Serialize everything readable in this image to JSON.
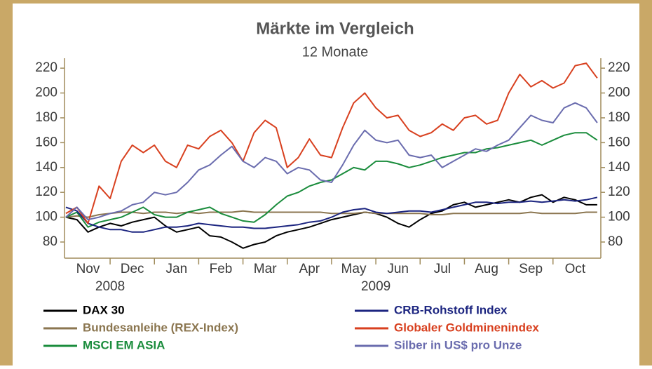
{
  "chart_data": {
    "type": "line",
    "title": "Märkte im Vergleich",
    "subtitle": "12 Monate",
    "x": [
      0,
      0.25,
      0.5,
      0.75,
      1,
      1.25,
      1.5,
      1.75,
      2,
      2.25,
      2.5,
      2.75,
      3,
      3.25,
      3.5,
      3.75,
      4,
      4.25,
      4.5,
      4.75,
      5,
      5.25,
      5.5,
      5.75,
      6,
      6.25,
      6.5,
      6.75,
      7,
      7.25,
      7.5,
      7.75,
      8,
      8.25,
      8.5,
      8.75,
      9,
      9.25,
      9.5,
      9.75,
      10,
      10.25,
      10.5,
      10.75,
      11,
      11.25,
      11.5,
      11.75,
      12
    ],
    "xlim": [
      -0.03,
      12.08
    ],
    "xticks": [
      {
        "value": 0.5,
        "label": "Nov"
      },
      {
        "value": 1.5,
        "label": "Dec"
      },
      {
        "value": 2.5,
        "label": "Jan"
      },
      {
        "value": 3.5,
        "label": "Feb"
      },
      {
        "value": 4.5,
        "label": "Mar"
      },
      {
        "value": 5.5,
        "label": "Apr"
      },
      {
        "value": 6.5,
        "label": "May"
      },
      {
        "value": 7.5,
        "label": "Jun"
      },
      {
        "value": 8.5,
        "label": "Jul"
      },
      {
        "value": 9.5,
        "label": "Aug"
      },
      {
        "value": 10.5,
        "label": "Sep"
      },
      {
        "value": 11.5,
        "label": "Oct"
      }
    ],
    "xticks_minor": [
      1,
      2,
      3,
      4,
      5,
      6,
      7,
      8,
      9,
      10,
      11
    ],
    "year_labels": [
      {
        "value": 1,
        "label": "2008"
      },
      {
        "value": 7,
        "label": "2009"
      }
    ],
    "ylim": [
      67,
      228
    ],
    "yticks": [
      80,
      100,
      120,
      140,
      160,
      180,
      200,
      220
    ],
    "series": [
      {
        "name": "DAX 30",
        "color": "#000000",
        "legend_column": 0,
        "values": [
          100,
          98,
          88,
          92,
          95,
          93,
          96,
          98,
          100,
          93,
          88,
          90,
          92,
          85,
          84,
          80,
          75,
          78,
          80,
          85,
          88,
          90,
          92,
          95,
          98,
          100,
          102,
          104,
          103,
          100,
          95,
          92,
          98,
          103,
          105,
          110,
          112,
          108,
          110,
          112,
          114,
          112,
          116,
          118,
          112,
          116,
          114,
          110,
          110
        ]
      },
      {
        "name": "Bundesanleihe (REX-Index)",
        "color": "#8b7650",
        "legend_column": 0,
        "values": [
          100,
          101,
          100,
          102,
          103,
          104,
          104,
          103,
          104,
          104,
          103,
          104,
          103,
          104,
          104,
          104,
          105,
          104,
          104,
          104,
          104,
          104,
          104,
          104,
          103,
          103,
          103,
          104,
          103,
          103,
          103,
          103,
          103,
          102,
          102,
          103,
          103,
          103,
          103,
          103,
          103,
          103,
          104,
          103,
          103,
          103,
          103,
          104,
          104
        ]
      },
      {
        "name": "MSCI EM ASIA",
        "color": "#1a8c3c",
        "legend_column": 0,
        "values": [
          100,
          104,
          92,
          96,
          98,
          100,
          104,
          108,
          102,
          100,
          100,
          104,
          106,
          108,
          103,
          100,
          97,
          96,
          102,
          110,
          117,
          120,
          125,
          128,
          130,
          135,
          140,
          138,
          145,
          145,
          143,
          140,
          142,
          145,
          148,
          150,
          152,
          152,
          155,
          156,
          158,
          160,
          162,
          158,
          162,
          166,
          168,
          168,
          162
        ]
      },
      {
        "name": "CRB-Rohstoff Index",
        "color": "#1c2580",
        "legend_column": 1,
        "values": [
          108,
          105,
          95,
          92,
          90,
          90,
          88,
          88,
          90,
          92,
          92,
          93,
          95,
          94,
          93,
          92,
          92,
          91,
          91,
          92,
          93,
          94,
          96,
          97,
          100,
          104,
          106,
          107,
          104,
          103,
          104,
          105,
          105,
          104,
          106,
          108,
          110,
          112,
          112,
          111,
          112,
          112,
          113,
          112,
          113,
          114,
          113,
          114,
          116
        ]
      },
      {
        "name": "Globaler Goldminenindex",
        "color": "#d8401f",
        "legend_column": 1,
        "values": [
          103,
          108,
          95,
          125,
          115,
          145,
          158,
          152,
          158,
          145,
          140,
          158,
          155,
          165,
          170,
          160,
          145,
          168,
          178,
          172,
          140,
          148,
          163,
          150,
          148,
          172,
          192,
          200,
          188,
          180,
          182,
          170,
          165,
          168,
          175,
          170,
          180,
          182,
          175,
          178,
          200,
          215,
          205,
          210,
          204,
          208,
          222,
          224,
          212
        ]
      },
      {
        "name": "Silber in US$ pro Unze",
        "color": "#6a6cae",
        "legend_column": 1,
        "values": [
          100,
          108,
          98,
          100,
          103,
          105,
          110,
          112,
          120,
          118,
          120,
          128,
          138,
          142,
          150,
          157,
          145,
          140,
          148,
          145,
          135,
          140,
          138,
          130,
          128,
          142,
          158,
          170,
          162,
          160,
          162,
          150,
          148,
          150,
          140,
          145,
          150,
          155,
          153,
          158,
          162,
          172,
          182,
          178,
          176,
          188,
          192,
          188,
          176
        ]
      }
    ]
  }
}
